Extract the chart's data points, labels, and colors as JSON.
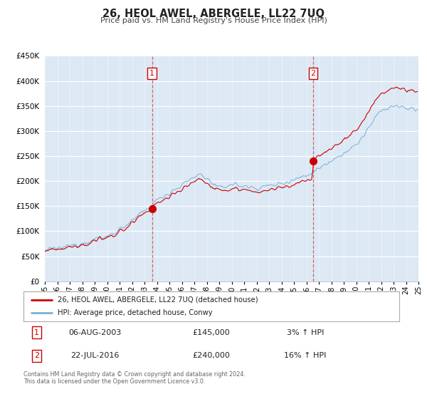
{
  "title": "26, HEOL AWEL, ABERGELE, LL22 7UQ",
  "subtitle": "Price paid vs. HM Land Registry's House Price Index (HPI)",
  "legend_line1": "26, HEOL AWEL, ABERGELE, LL22 7UQ (detached house)",
  "legend_line2": "HPI: Average price, detached house, Conwy",
  "line1_color": "#cc0000",
  "line2_color": "#7bafd4",
  "background_color": "#dce9f5",
  "marker1_date_x": 2003.6,
  "marker1_y": 145000,
  "marker2_date_x": 2016.55,
  "marker2_y": 240000,
  "vline1_x": 2003.6,
  "vline2_x": 2016.55,
  "ylim": [
    0,
    450000
  ],
  "xlim_start": 1995.0,
  "xlim_end": 2025.0,
  "footnote1": "Contains HM Land Registry data © Crown copyright and database right 2024.",
  "footnote2": "This data is licensed under the Open Government Licence v3.0.",
  "table_row1_num": "1",
  "table_row1_date": "06-AUG-2003",
  "table_row1_price": "£145,000",
  "table_row1_hpi": "3% ↑ HPI",
  "table_row2_num": "2",
  "table_row2_date": "22-JUL-2016",
  "table_row2_price": "£240,000",
  "table_row2_hpi": "16% ↑ HPI"
}
